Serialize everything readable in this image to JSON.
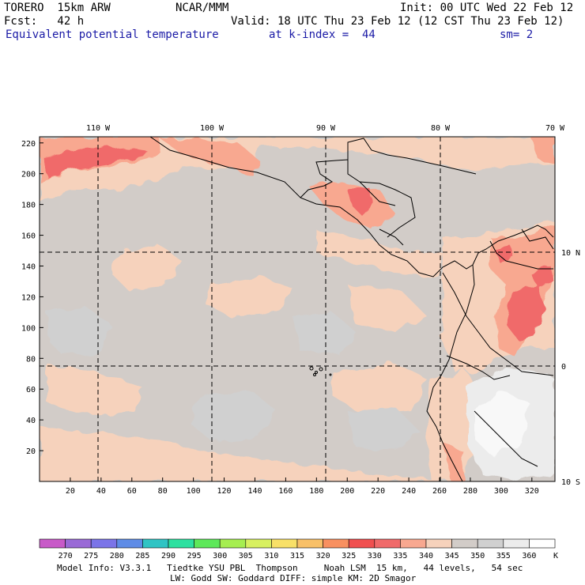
{
  "header": {
    "model": "TORERO  15km ARW",
    "center": "NCAR/MMM",
    "init": "Init: 00 UTC Wed 22 Feb 12",
    "fcst": "Fcst:   42 h",
    "valid": "Valid: 18 UTC Thu 23 Feb 12 (12 CST Thu 23 Feb 12)",
    "field": "Equivalent potential temperature",
    "level": "at k-index =  44",
    "smooth": "sm= 2"
  },
  "map": {
    "lon_labels": [
      "110 W",
      "100 W",
      "90 W",
      "80 W",
      "70 W"
    ],
    "lat_labels": [
      "10 N",
      "0",
      "10 S"
    ],
    "x_ticks": [
      "20",
      "40",
      "60",
      "80",
      "100",
      "120",
      "140",
      "160",
      "180",
      "200",
      "220",
      "240",
      "260",
      "280",
      "300",
      "320"
    ],
    "y_ticks": [
      "20",
      "40",
      "60",
      "80",
      "100",
      "120",
      "140",
      "160",
      "180",
      "200",
      "220"
    ],
    "x_range": [
      0,
      335
    ],
    "y_range": [
      0,
      224
    ]
  },
  "colorbar": {
    "labels": [
      "270",
      "275",
      "280",
      "285",
      "290",
      "295",
      "300",
      "305",
      "310",
      "315",
      "320",
      "325",
      "330",
      "335",
      "340",
      "345",
      "350",
      "355",
      "360"
    ],
    "unit": "K",
    "colors": [
      "#c85ac8",
      "#9a6ad6",
      "#7b74e8",
      "#5f8ce6",
      "#30c4c4",
      "#2ee0a0",
      "#5ee85a",
      "#a6ee50",
      "#d8f060",
      "#f8e068",
      "#f8c068",
      "#f89060",
      "#f05050",
      "#f06a6a",
      "#f8a890",
      "#f6d2bc",
      "#d2ccc8",
      "#d0d0d0",
      "#ececec",
      "#ffffff"
    ]
  },
  "footer": {
    "line1": "Model Info: V3.3.1   Tiedtke YSU PBL  Thompson     Noah LSM  15 km,   44 levels,   54 sec",
    "line2": "LW: Godd SW: Goddard DIFF: simple KM: 2D Smagor"
  }
}
